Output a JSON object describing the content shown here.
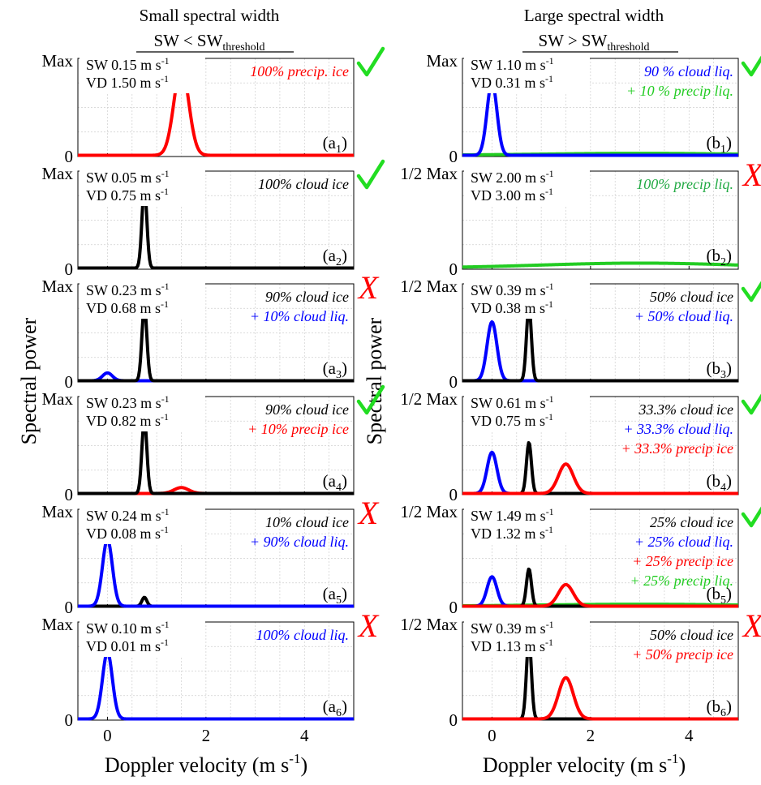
{
  "figure": {
    "columns": [
      {
        "title": "Small spectral width",
        "subtitle_main": "SW < SW",
        "subtitle_sub": "threshold"
      },
      {
        "title": "Large spectral width",
        "subtitle_main": "SW > SW",
        "subtitle_sub": "threshold"
      }
    ],
    "ylabel": "Spectral power",
    "xlabel_main": "Doppler velocity (m s",
    "xlabel_exp": "-1",
    "xlabel_close": ")",
    "xticks": [
      "0",
      "2",
      "4"
    ],
    "colors": {
      "precip_ice": "#ff0000",
      "cloud_ice": "#000000",
      "cloud_liq": "#0000ff",
      "precip_liq": "#22cc22",
      "mark_ok": "#22dd22",
      "mark_bad": "#ff0000"
    }
  },
  "chart_data": [
    {
      "type": "line",
      "panel": "a",
      "sub": "1",
      "ytop": "Max",
      "ybottom": "0",
      "sw": "SW 0.15 m s",
      "vd": "VD 1.50 m s",
      "unit_exp": "-1",
      "annotations": [
        {
          "text": "100% precip. ice",
          "color": "#ff0000"
        }
      ],
      "mark": "check",
      "xlim": [
        -0.6,
        5
      ],
      "ylim": [
        0,
        1
      ],
      "series": [
        {
          "color": "#ff0000",
          "mu": 1.5,
          "sigma": 0.15,
          "amp": 0.9
        }
      ]
    },
    {
      "type": "line",
      "panel": "a",
      "sub": "2",
      "ytop": "Max",
      "ybottom": "0",
      "sw": "SW 0.05 m s",
      "vd": "VD 0.75 m s",
      "unit_exp": "-1",
      "annotations": [
        {
          "text": "100% cloud ice",
          "color": "#000000"
        }
      ],
      "mark": "check",
      "xlim": [
        -0.6,
        5
      ],
      "ylim": [
        0,
        1
      ],
      "series": [
        {
          "color": "#000000",
          "mu": 0.75,
          "sigma": 0.05,
          "amp": 0.82
        }
      ]
    },
    {
      "type": "line",
      "panel": "a",
      "sub": "3",
      "ytop": "Max",
      "ybottom": "0",
      "sw": "SW 0.23  m s",
      "vd": "VD 0.68 m s",
      "unit_exp": "-1",
      "annotations": [
        {
          "text": "90% cloud ice",
          "color": "#000000"
        },
        {
          "text": "+ 10% cloud liq.",
          "color": "#0000ff"
        }
      ],
      "mark": "x",
      "xlim": [
        -0.6,
        5
      ],
      "ylim": [
        0,
        1
      ],
      "series": [
        {
          "color": "#0000ff",
          "mu": 0.0,
          "sigma": 0.1,
          "amp": 0.08
        },
        {
          "color": "#000000",
          "mu": 0.75,
          "sigma": 0.05,
          "amp": 0.76
        }
      ]
    },
    {
      "type": "line",
      "panel": "a",
      "sub": "4",
      "ytop": "Max",
      "ybottom": "0",
      "sw": "SW 0.23  m s",
      "vd": "VD 0.82 m s",
      "unit_exp": "-1",
      "annotations": [
        {
          "text": "90% cloud ice",
          "color": "#000000"
        },
        {
          "text": "+ 10% precip ice",
          "color": "#ff0000"
        }
      ],
      "mark": "check",
      "xlim": [
        -0.6,
        5
      ],
      "ylim": [
        0,
        1
      ],
      "series": [
        {
          "color": "#ff0000",
          "mu": 1.5,
          "sigma": 0.15,
          "amp": 0.06
        },
        {
          "color": "#000000",
          "mu": 0.75,
          "sigma": 0.05,
          "amp": 0.76
        }
      ]
    },
    {
      "type": "line",
      "panel": "a",
      "sub": "5",
      "ytop": "Max",
      "ybottom": "0",
      "sw": "SW 0.24 m s",
      "vd": "VD 0.08 m s",
      "unit_exp": "-1",
      "annotations": [
        {
          "text": "10% cloud ice",
          "color": "#000000"
        },
        {
          "text": "+ 90% cloud liq.",
          "color": "#0000ff"
        }
      ],
      "mark": "x",
      "xlim": [
        -0.6,
        5
      ],
      "ylim": [
        0,
        1
      ],
      "series": [
        {
          "color": "#000000",
          "mu": 0.75,
          "sigma": 0.05,
          "amp": 0.09
        },
        {
          "color": "#0000ff",
          "mu": 0.0,
          "sigma": 0.1,
          "amp": 0.68
        }
      ]
    },
    {
      "type": "line",
      "panel": "a",
      "sub": "6",
      "ytop": "Max",
      "ybottom": "0",
      "sw": "SW 0.10 m s",
      "vd": "VD 0.01 m s",
      "unit_exp": "-1",
      "annotations": [
        {
          "text": "100% cloud liq.",
          "color": "#0000ff"
        }
      ],
      "mark": "x",
      "xlim": [
        -0.6,
        5
      ],
      "ylim": [
        0,
        1
      ],
      "series": [
        {
          "color": "#0000ff",
          "mu": 0.0,
          "sigma": 0.1,
          "amp": 0.68
        }
      ]
    },
    {
      "type": "line",
      "panel": "b",
      "sub": "1",
      "ytop": "Max",
      "ybottom": "0",
      "sw": "SW 1.10 m s",
      "vd": "VD 0.31 m s",
      "unit_exp": "-1",
      "annotations": [
        {
          "text": "90 % cloud liq.",
          "color": "#0000ff"
        },
        {
          "text": "+ 10 % precip liq.",
          "color": "#22cc22"
        }
      ],
      "mark": "check",
      "xlim": [
        -0.6,
        5
      ],
      "ylim": [
        0,
        1
      ],
      "series": [
        {
          "color": "#22cc22",
          "mu": 3.0,
          "sigma": 2.0,
          "amp": 0.02
        },
        {
          "color": "#0000ff",
          "mu": 0.0,
          "sigma": 0.1,
          "amp": 0.75
        }
      ]
    },
    {
      "type": "line",
      "panel": "b",
      "sub": "2",
      "ytop": "1/2 Max",
      "ybottom": "0",
      "sw": "SW 2.00 m s",
      "vd": "VD 3.00 m s",
      "unit_exp": "-1",
      "annotations": [
        {
          "text": "100% precip liq.",
          "color": "#22aa44"
        }
      ],
      "mark": "x",
      "xlim": [
        -0.6,
        5
      ],
      "ylim": [
        0,
        1
      ],
      "series": [
        {
          "color": "#22cc22",
          "mu": 3.0,
          "sigma": 2.0,
          "amp": 0.05
        }
      ]
    },
    {
      "type": "line",
      "panel": "b",
      "sub": "3",
      "ytop": "1/2 Max",
      "ybottom": "0",
      "sw": "SW 0.39 m s",
      "vd": "VD 0.38 m s",
      "unit_exp": "-1",
      "annotations": [
        {
          "text": "50% cloud ice",
          "color": "#000000"
        },
        {
          "text": "+ 50% cloud liq.",
          "color": "#0000ff"
        }
      ],
      "mark": "check",
      "xlim": [
        -0.6,
        5
      ],
      "ylim": [
        0,
        1
      ],
      "series": [
        {
          "color": "#0000ff",
          "mu": 0.0,
          "sigma": 0.1,
          "amp": 0.6
        },
        {
          "color": "#000000",
          "mu": 0.75,
          "sigma": 0.05,
          "amp": 0.76
        }
      ]
    },
    {
      "type": "line",
      "panel": "b",
      "sub": "4",
      "ytop": "1/2 Max",
      "ybottom": "0",
      "sw": "SW 0.61 m s",
      "vd": "VD 0.75 m s",
      "unit_exp": "-1",
      "annotations": [
        {
          "text": "33.3% cloud ice",
          "color": "#000000"
        },
        {
          "text": "+ 33.3% cloud liq.",
          "color": "#0000ff"
        },
        {
          "text": "+ 33.3% precip ice",
          "color": "#ff0000"
        }
      ],
      "mark": "check",
      "xlim": [
        -0.6,
        5
      ],
      "ylim": [
        0,
        1
      ],
      "series": [
        {
          "color": "#0000ff",
          "mu": 0.0,
          "sigma": 0.1,
          "amp": 0.42
        },
        {
          "color": "#000000",
          "mu": 0.75,
          "sigma": 0.05,
          "amp": 0.52
        },
        {
          "color": "#ff0000",
          "mu": 1.5,
          "sigma": 0.15,
          "amp": 0.3
        }
      ]
    },
    {
      "type": "line",
      "panel": "b",
      "sub": "5",
      "ytop": "1/2 Max",
      "ybottom": "0",
      "sw": "SW 1.49 m s",
      "vd": "VD 1.32 m s",
      "unit_exp": "-1",
      "annotations": [
        {
          "text": "25% cloud ice",
          "color": "#000000"
        },
        {
          "text": "+ 25% cloud liq.",
          "color": "#0000ff"
        },
        {
          "text": "+ 25% precip ice",
          "color": "#ff0000"
        },
        {
          "text": "+ 25% precip liq.",
          "color": "#22cc22"
        }
      ],
      "mark": "check",
      "xlim": [
        -0.6,
        5
      ],
      "ylim": [
        0,
        1
      ],
      "series": [
        {
          "color": "#22cc22",
          "mu": 3.0,
          "sigma": 2.0,
          "amp": 0.02
        },
        {
          "color": "#0000ff",
          "mu": 0.0,
          "sigma": 0.1,
          "amp": 0.3
        },
        {
          "color": "#000000",
          "mu": 0.75,
          "sigma": 0.05,
          "amp": 0.38
        },
        {
          "color": "#ff0000",
          "mu": 1.5,
          "sigma": 0.15,
          "amp": 0.22
        }
      ]
    },
    {
      "type": "line",
      "panel": "b",
      "sub": "6",
      "ytop": "1/2 Max",
      "ybottom": "0",
      "sw": "SW 0.39 m s",
      "vd": "VD 1.13 m s",
      "unit_exp": "-1",
      "annotations": [
        {
          "text": "50% cloud ice",
          "color": "#000000"
        },
        {
          "text": "+ 50% precip ice",
          "color": "#ff0000"
        }
      ],
      "mark": "x",
      "xlim": [
        -0.6,
        5
      ],
      "ylim": [
        0,
        1
      ],
      "series": [
        {
          "color": "#000000",
          "mu": 0.75,
          "sigma": 0.05,
          "amp": 0.82
        },
        {
          "color": "#ff0000",
          "mu": 1.5,
          "sigma": 0.15,
          "amp": 0.42
        }
      ]
    }
  ]
}
